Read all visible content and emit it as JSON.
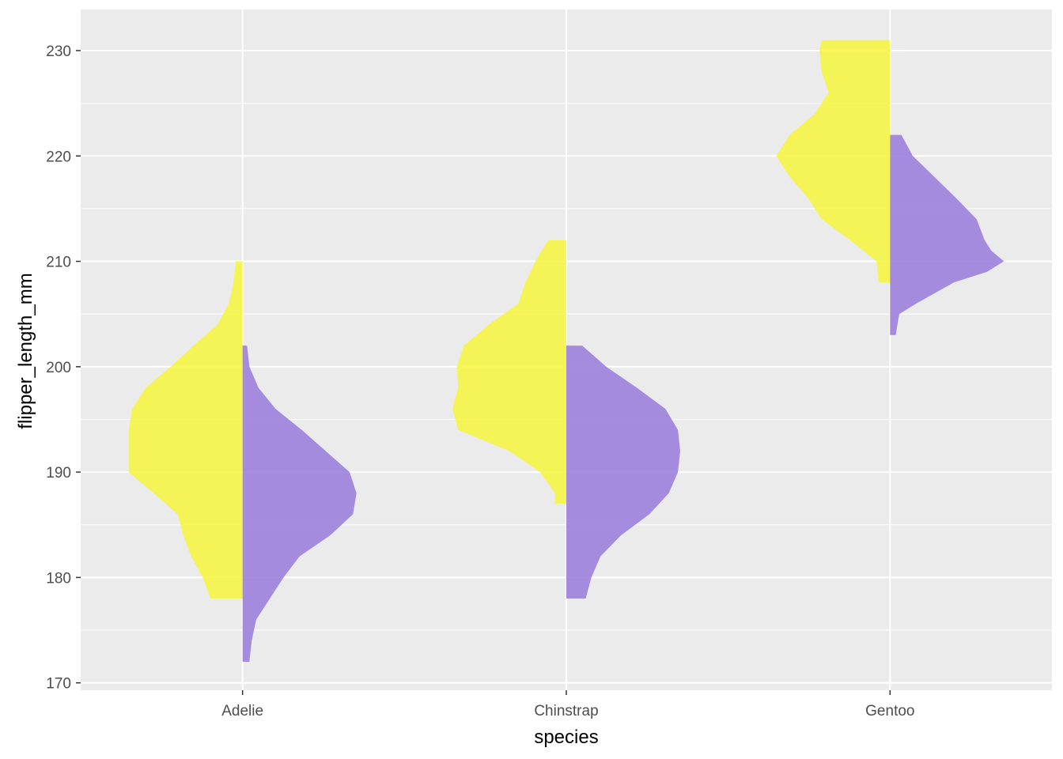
{
  "chart_data": {
    "type": "violin",
    "variant": "split-violin",
    "xlabel": "species",
    "ylabel": "flipper_length_mm",
    "categories": [
      "Adelie",
      "Chinstrap",
      "Gentoo"
    ],
    "ylim": [
      169.3,
      233.9
    ],
    "y_ticks": [
      170,
      180,
      190,
      200,
      210,
      220,
      230
    ],
    "grid": true,
    "legend": "none",
    "colors": {
      "left_half": "#f5f542",
      "right_half": "#9b7ddc",
      "panel": "#ebebeb",
      "grid": "#ffffff"
    },
    "violins": [
      {
        "category": "Adelie",
        "side": "left",
        "range": [
          178,
          210
        ],
        "density": [
          [
            178,
            0.28
          ],
          [
            180,
            0.35
          ],
          [
            182,
            0.45
          ],
          [
            184,
            0.52
          ],
          [
            186,
            0.57
          ],
          [
            188,
            0.78
          ],
          [
            190,
            1.0
          ],
          [
            192,
            1.0
          ],
          [
            194,
            1.0
          ],
          [
            196,
            0.97
          ],
          [
            198,
            0.85
          ],
          [
            200,
            0.63
          ],
          [
            202,
            0.43
          ],
          [
            204,
            0.22
          ],
          [
            206,
            0.12
          ],
          [
            208,
            0.08
          ],
          [
            210,
            0.06
          ]
        ]
      },
      {
        "category": "Adelie",
        "side": "right",
        "range": [
          172,
          202
        ],
        "density": [
          [
            172,
            0.06
          ],
          [
            174,
            0.08
          ],
          [
            176,
            0.12
          ],
          [
            178,
            0.24
          ],
          [
            180,
            0.36
          ],
          [
            182,
            0.5
          ],
          [
            184,
            0.77
          ],
          [
            186,
            0.97
          ],
          [
            188,
            1.0
          ],
          [
            190,
            0.94
          ],
          [
            192,
            0.73
          ],
          [
            194,
            0.52
          ],
          [
            196,
            0.29
          ],
          [
            198,
            0.14
          ],
          [
            200,
            0.06
          ],
          [
            202,
            0.04
          ]
        ]
      },
      {
        "category": "Chinstrap",
        "side": "left",
        "range": [
          187,
          212
        ],
        "density": [
          [
            187,
            0.1
          ],
          [
            188,
            0.1
          ],
          [
            190,
            0.23
          ],
          [
            192,
            0.5
          ],
          [
            194,
            0.95
          ],
          [
            196,
            1.0
          ],
          [
            198,
            0.95
          ],
          [
            200,
            0.96
          ],
          [
            202,
            0.9
          ],
          [
            204,
            0.68
          ],
          [
            206,
            0.42
          ],
          [
            208,
            0.36
          ],
          [
            210,
            0.27
          ],
          [
            212,
            0.16
          ]
        ]
      },
      {
        "category": "Chinstrap",
        "side": "right",
        "range": [
          178,
          202
        ],
        "density": [
          [
            178,
            0.17
          ],
          [
            180,
            0.22
          ],
          [
            182,
            0.3
          ],
          [
            184,
            0.48
          ],
          [
            186,
            0.73
          ],
          [
            188,
            0.9
          ],
          [
            190,
            0.98
          ],
          [
            192,
            1.0
          ],
          [
            194,
            0.98
          ],
          [
            196,
            0.87
          ],
          [
            198,
            0.62
          ],
          [
            200,
            0.35
          ],
          [
            202,
            0.14
          ]
        ]
      },
      {
        "category": "Gentoo",
        "side": "left",
        "range": [
          208,
          231
        ],
        "density": [
          [
            208,
            0.1
          ],
          [
            210,
            0.12
          ],
          [
            212,
            0.35
          ],
          [
            214,
            0.6
          ],
          [
            216,
            0.72
          ],
          [
            218,
            0.88
          ],
          [
            220,
            1.0
          ],
          [
            222,
            0.88
          ],
          [
            224,
            0.66
          ],
          [
            226,
            0.54
          ],
          [
            228,
            0.6
          ],
          [
            230,
            0.62
          ],
          [
            231,
            0.6
          ]
        ]
      },
      {
        "category": "Gentoo",
        "side": "right",
        "range": [
          203,
          222
        ],
        "density": [
          [
            203,
            0.05
          ],
          [
            205,
            0.08
          ],
          [
            206,
            0.23
          ],
          [
            208,
            0.56
          ],
          [
            209,
            0.85
          ],
          [
            210,
            1.0
          ],
          [
            211,
            0.89
          ],
          [
            212,
            0.83
          ],
          [
            214,
            0.76
          ],
          [
            216,
            0.58
          ],
          [
            218,
            0.39
          ],
          [
            220,
            0.2
          ],
          [
            222,
            0.1
          ]
        ]
      }
    ]
  }
}
